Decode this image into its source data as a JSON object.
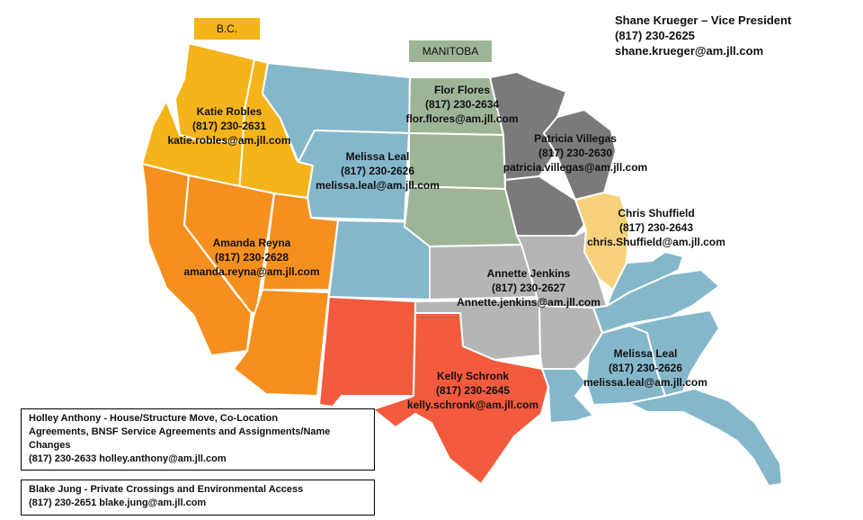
{
  "province_tags": {
    "bc": {
      "label": "B.C.",
      "color": "#F4B41A"
    },
    "manitoba": {
      "label": "MANITOBA",
      "color": "#9DB596"
    }
  },
  "vice_president": {
    "title": "Shane Krueger – Vice President",
    "phone": "(817)  230-2625",
    "email": "shane.krueger@am.jll.com"
  },
  "regions": [
    {
      "name": "Katie Robles",
      "phone": "(817) 230-2631",
      "email": "katie.robles@am.jll.com",
      "color": "#F4B41A"
    },
    {
      "name": "Melissa Leal",
      "phone": "(817) 230-2626",
      "email": "melissa.leal@am.jll.com",
      "color": "#85B7CB"
    },
    {
      "name": "Flor Flores",
      "phone": "(817) 230-2634",
      "email": "flor.flores@am.jll.com",
      "color": "#9DB596"
    },
    {
      "name": "Patricia Villegas",
      "phone": "(817) 230-2630",
      "email": "patricia.villegas@am.jll.com",
      "color": "#7A7A7A"
    },
    {
      "name": "Chris Shuffield",
      "phone": "(817) 230-2643",
      "email": "chris.Shuffield@am.jll.com",
      "color": "#F7D27A"
    },
    {
      "name": "Amanda Reyna",
      "phone": "(817) 230-2628",
      "email": "amanda.reyna@am.jll.com",
      "color": "#F5901E"
    },
    {
      "name": "Annette Jenkins",
      "phone": "(817) 230-2627",
      "email": "Annette.jenkins@am.jll.com",
      "color": "#B5B5B5"
    },
    {
      "name": "Kelly Schronk",
      "phone": "(817) 230-2645",
      "email": "kelly.schronk@am.jll.com",
      "color": "#F45A3D"
    },
    {
      "name": "Melissa Leal",
      "phone": "(817) 230-2626",
      "email": "melissa.leal@am.jll.com",
      "color": "#85B7CB"
    }
  ],
  "notes": [
    {
      "line1": "Holley Anthony  - House/Structure Move, Co-Location",
      "line2": "Agreements, BNSF  Service Agreements and Assignments/Name",
      "line3": "Changes",
      "line4": "(817) 230-2633  holley.anthony@am.jll.com"
    },
    {
      "line1": "Blake Jung - Private Crossings and Environmental Access",
      "line2": "(817) 230-2651  blake.jung@am.jll.com"
    }
  ],
  "colors": {
    "yellow": "#F4B41A",
    "orange": "#F5901E",
    "blue": "#85B7CB",
    "sage": "#9DB596",
    "dark_gray": "#7A7A7A",
    "light_gray": "#B5B5B5",
    "red": "#F45A3D",
    "light_yellow": "#F7D27A",
    "border": "#FFFFFF"
  }
}
